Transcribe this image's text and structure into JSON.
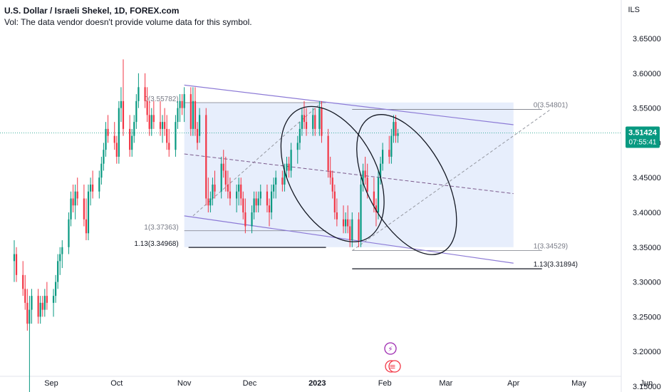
{
  "header": {
    "title": "U.S. Dollar / Israeli Shekel, 1D, FOREX.com",
    "volume_note": "Vol: The data vendor doesn't provide volume data for this symbol."
  },
  "price_axis": {
    "currency": "ILS",
    "current_price": "3.51424",
    "countdown": "07:55:41"
  },
  "chart_data": {
    "type": "candlestick",
    "title": "U.S. Dollar / Israeli Shekel, 1D, FOREX.com",
    "ylim": [
      3.125,
      3.675
    ],
    "y_ticks": [
      "3.65000",
      "3.60000",
      "3.55000",
      "3.50000",
      "3.45000",
      "3.40000",
      "3.35000",
      "3.30000",
      "3.25000",
      "3.20000",
      "3.15000"
    ],
    "x_ticks": [
      {
        "label": "Sep",
        "day": 0
      },
      {
        "label": "Oct",
        "day": 30
      },
      {
        "label": "Nov",
        "day": 61
      },
      {
        "label": "Dec",
        "day": 91
      },
      {
        "label": "2023",
        "day": 122
      },
      {
        "label": "Feb",
        "day": 153
      },
      {
        "label": "Mar",
        "day": 181
      },
      {
        "label": "Apr",
        "day": 212
      },
      {
        "label": "May",
        "day": 242
      },
      {
        "label": "Jun",
        "day": 273
      }
    ],
    "candles": [
      {
        "d": -17,
        "o": 3.33,
        "h": 3.36,
        "l": 3.3,
        "c": 3.34
      },
      {
        "d": -16,
        "o": 3.34,
        "h": 3.35,
        "l": 3.3,
        "c": 3.31
      },
      {
        "d": -13,
        "o": 3.31,
        "h": 3.33,
        "l": 3.28,
        "c": 3.29
      },
      {
        "d": -12,
        "o": 3.29,
        "h": 3.31,
        "l": 3.26,
        "c": 3.27
      },
      {
        "d": -11,
        "o": 3.27,
        "h": 3.29,
        "l": 3.23,
        "c": 3.24
      },
      {
        "d": -10,
        "o": 3.24,
        "h": 3.28,
        "l": 3.14,
        "c": 3.26
      },
      {
        "d": -9,
        "o": 3.26,
        "h": 3.29,
        "l": 3.24,
        "c": 3.28
      },
      {
        "d": -6,
        "o": 3.28,
        "h": 3.29,
        "l": 3.24,
        "c": 3.25
      },
      {
        "d": -5,
        "o": 3.25,
        "h": 3.28,
        "l": 3.24,
        "c": 3.27
      },
      {
        "d": -4,
        "o": 3.27,
        "h": 3.28,
        "l": 3.25,
        "c": 3.26
      },
      {
        "d": -3,
        "o": 3.26,
        "h": 3.29,
        "l": 3.25,
        "c": 3.28
      },
      {
        "d": -2,
        "o": 3.28,
        "h": 3.3,
        "l": 3.26,
        "c": 3.27
      },
      {
        "d": 1,
        "o": 3.27,
        "h": 3.29,
        "l": 3.25,
        "c": 3.28
      },
      {
        "d": 2,
        "o": 3.28,
        "h": 3.31,
        "l": 3.27,
        "c": 3.3
      },
      {
        "d": 3,
        "o": 3.3,
        "h": 3.34,
        "l": 3.29,
        "c": 3.33
      },
      {
        "d": 4,
        "o": 3.33,
        "h": 3.35,
        "l": 3.31,
        "c": 3.34
      },
      {
        "d": 5,
        "o": 3.34,
        "h": 3.36,
        "l": 3.32,
        "c": 3.35
      },
      {
        "d": 8,
        "o": 3.35,
        "h": 3.4,
        "l": 3.34,
        "c": 3.39
      },
      {
        "d": 9,
        "o": 3.39,
        "h": 3.43,
        "l": 3.38,
        "c": 3.42
      },
      {
        "d": 10,
        "o": 3.42,
        "h": 3.44,
        "l": 3.4,
        "c": 3.41
      },
      {
        "d": 11,
        "o": 3.41,
        "h": 3.44,
        "l": 3.39,
        "c": 3.43
      },
      {
        "d": 12,
        "o": 3.43,
        "h": 3.45,
        "l": 3.41,
        "c": 3.42
      },
      {
        "d": 15,
        "o": 3.42,
        "h": 3.44,
        "l": 3.38,
        "c": 3.39
      },
      {
        "d": 16,
        "o": 3.39,
        "h": 3.42,
        "l": 3.36,
        "c": 3.37
      },
      {
        "d": 17,
        "o": 3.37,
        "h": 3.44,
        "l": 3.36,
        "c": 3.43
      },
      {
        "d": 18,
        "o": 3.43,
        "h": 3.45,
        "l": 3.41,
        "c": 3.44
      },
      {
        "d": 19,
        "o": 3.44,
        "h": 3.46,
        "l": 3.42,
        "c": 3.43
      },
      {
        "d": 22,
        "o": 3.43,
        "h": 3.46,
        "l": 3.42,
        "c": 3.45
      },
      {
        "d": 23,
        "o": 3.45,
        "h": 3.48,
        "l": 3.44,
        "c": 3.47
      },
      {
        "d": 24,
        "o": 3.47,
        "h": 3.5,
        "l": 3.46,
        "c": 3.49
      },
      {
        "d": 25,
        "o": 3.49,
        "h": 3.53,
        "l": 3.48,
        "c": 3.52
      },
      {
        "d": 26,
        "o": 3.52,
        "h": 3.54,
        "l": 3.5,
        "c": 3.51
      },
      {
        "d": 29,
        "o": 3.51,
        "h": 3.53,
        "l": 3.49,
        "c": 3.5
      },
      {
        "d": 30,
        "o": 3.5,
        "h": 3.51,
        "l": 3.47,
        "c": 3.48
      },
      {
        "d": 31,
        "o": 3.48,
        "h": 3.56,
        "l": 3.47,
        "c": 3.55
      },
      {
        "d": 32,
        "o": 3.55,
        "h": 3.58,
        "l": 3.53,
        "c": 3.56
      },
      {
        "d": 33,
        "o": 3.56,
        "h": 3.62,
        "l": 3.51,
        "c": 3.52
      },
      {
        "d": 36,
        "o": 3.52,
        "h": 3.54,
        "l": 3.48,
        "c": 3.49
      },
      {
        "d": 37,
        "o": 3.49,
        "h": 3.52,
        "l": 3.48,
        "c": 3.51
      },
      {
        "d": 38,
        "o": 3.51,
        "h": 3.54,
        "l": 3.5,
        "c": 3.53
      },
      {
        "d": 39,
        "o": 3.53,
        "h": 3.57,
        "l": 3.52,
        "c": 3.56
      },
      {
        "d": 40,
        "o": 3.56,
        "h": 3.6,
        "l": 3.55,
        "c": 3.58
      },
      {
        "d": 43,
        "o": 3.58,
        "h": 3.6,
        "l": 3.55,
        "c": 3.56
      },
      {
        "d": 44,
        "o": 3.56,
        "h": 3.58,
        "l": 3.53,
        "c": 3.54
      },
      {
        "d": 45,
        "o": 3.54,
        "h": 3.56,
        "l": 3.51,
        "c": 3.52
      },
      {
        "d": 46,
        "o": 3.52,
        "h": 3.55,
        "l": 3.51,
        "c": 3.54
      },
      {
        "d": 47,
        "o": 3.54,
        "h": 3.56,
        "l": 3.52,
        "c": 3.53
      },
      {
        "d": 50,
        "o": 3.53,
        "h": 3.56,
        "l": 3.51,
        "c": 3.52
      },
      {
        "d": 51,
        "o": 3.52,
        "h": 3.54,
        "l": 3.5,
        "c": 3.53
      },
      {
        "d": 52,
        "o": 3.53,
        "h": 3.55,
        "l": 3.51,
        "c": 3.52
      },
      {
        "d": 53,
        "o": 3.52,
        "h": 3.54,
        "l": 3.49,
        "c": 3.5
      },
      {
        "d": 54,
        "o": 3.5,
        "h": 3.52,
        "l": 3.48,
        "c": 3.49
      },
      {
        "d": 57,
        "o": 3.49,
        "h": 3.54,
        "l": 3.48,
        "c": 3.53
      },
      {
        "d": 58,
        "o": 3.53,
        "h": 3.56,
        "l": 3.52,
        "c": 3.55
      },
      {
        "d": 59,
        "o": 3.55,
        "h": 3.57,
        "l": 3.53,
        "c": 3.56
      },
      {
        "d": 60,
        "o": 3.56,
        "h": 3.57,
        "l": 3.54,
        "c": 3.55
      },
      {
        "d": 61,
        "o": 3.55,
        "h": 3.58,
        "l": 3.53,
        "c": 3.57
      },
      {
        "d": 64,
        "o": 3.57,
        "h": 3.58,
        "l": 3.51,
        "c": 3.52
      },
      {
        "d": 65,
        "o": 3.52,
        "h": 3.58,
        "l": 3.51,
        "c": 3.56
      },
      {
        "d": 66,
        "o": 3.56,
        "h": 3.58,
        "l": 3.51,
        "c": 3.52
      },
      {
        "d": 67,
        "o": 3.52,
        "h": 3.53,
        "l": 3.49,
        "c": 3.5
      },
      {
        "d": 68,
        "o": 3.51,
        "h": 3.55,
        "l": 3.5,
        "c": 3.54
      },
      {
        "d": 71,
        "o": 3.54,
        "h": 3.55,
        "l": 3.41,
        "c": 3.42
      },
      {
        "d": 72,
        "o": 3.42,
        "h": 3.45,
        "l": 3.4,
        "c": 3.41
      },
      {
        "d": 73,
        "o": 3.41,
        "h": 3.43,
        "l": 3.4,
        "c": 3.42
      },
      {
        "d": 74,
        "o": 3.42,
        "h": 3.45,
        "l": 3.41,
        "c": 3.44
      },
      {
        "d": 75,
        "o": 3.44,
        "h": 3.46,
        "l": 3.42,
        "c": 3.43
      },
      {
        "d": 78,
        "o": 3.43,
        "h": 3.48,
        "l": 3.42,
        "c": 3.47
      },
      {
        "d": 79,
        "o": 3.47,
        "h": 3.49,
        "l": 3.45,
        "c": 3.46
      },
      {
        "d": 80,
        "o": 3.46,
        "h": 3.48,
        "l": 3.43,
        "c": 3.44
      },
      {
        "d": 81,
        "o": 3.44,
        "h": 3.46,
        "l": 3.42,
        "c": 3.43
      },
      {
        "d": 82,
        "o": 3.43,
        "h": 3.45,
        "l": 3.41,
        "c": 3.42
      },
      {
        "d": 85,
        "o": 3.42,
        "h": 3.44,
        "l": 3.4,
        "c": 3.43
      },
      {
        "d": 86,
        "o": 3.43,
        "h": 3.45,
        "l": 3.41,
        "c": 3.44
      },
      {
        "d": 87,
        "o": 3.44,
        "h": 3.45,
        "l": 3.41,
        "c": 3.42
      },
      {
        "d": 88,
        "o": 3.42,
        "h": 3.43,
        "l": 3.39,
        "c": 3.4
      },
      {
        "d": 89,
        "o": 3.4,
        "h": 3.42,
        "l": 3.37,
        "c": 3.38
      },
      {
        "d": 92,
        "o": 3.38,
        "h": 3.41,
        "l": 3.37,
        "c": 3.4
      },
      {
        "d": 93,
        "o": 3.4,
        "h": 3.43,
        "l": 3.39,
        "c": 3.42
      },
      {
        "d": 94,
        "o": 3.42,
        "h": 3.43,
        "l": 3.4,
        "c": 3.41
      },
      {
        "d": 95,
        "o": 3.41,
        "h": 3.43,
        "l": 3.4,
        "c": 3.42
      },
      {
        "d": 96,
        "o": 3.42,
        "h": 3.44,
        "l": 3.41,
        "c": 3.43
      },
      {
        "d": 99,
        "o": 3.43,
        "h": 3.44,
        "l": 3.4,
        "c": 3.41
      },
      {
        "d": 100,
        "o": 3.41,
        "h": 3.42,
        "l": 3.38,
        "c": 3.4
      },
      {
        "d": 101,
        "o": 3.4,
        "h": 3.44,
        "l": 3.39,
        "c": 3.43
      },
      {
        "d": 102,
        "o": 3.43,
        "h": 3.45,
        "l": 3.42,
        "c": 3.44
      },
      {
        "d": 103,
        "o": 3.44,
        "h": 3.46,
        "l": 3.42,
        "c": 3.45
      },
      {
        "d": 106,
        "o": 3.45,
        "h": 3.46,
        "l": 3.43,
        "c": 3.44
      },
      {
        "d": 107,
        "o": 3.44,
        "h": 3.47,
        "l": 3.43,
        "c": 3.46
      },
      {
        "d": 108,
        "o": 3.46,
        "h": 3.48,
        "l": 3.45,
        "c": 3.47
      },
      {
        "d": 109,
        "o": 3.47,
        "h": 3.48,
        "l": 3.45,
        "c": 3.46
      },
      {
        "d": 110,
        "o": 3.46,
        "h": 3.5,
        "l": 3.45,
        "c": 3.49
      },
      {
        "d": 113,
        "o": 3.49,
        "h": 3.51,
        "l": 3.47,
        "c": 3.5
      },
      {
        "d": 114,
        "o": 3.5,
        "h": 3.53,
        "l": 3.49,
        "c": 3.52
      },
      {
        "d": 115,
        "o": 3.52,
        "h": 3.55,
        "l": 3.51,
        "c": 3.54
      },
      {
        "d": 116,
        "o": 3.54,
        "h": 3.56,
        "l": 3.52,
        "c": 3.53
      },
      {
        "d": 117,
        "o": 3.53,
        "h": 3.55,
        "l": 3.51,
        "c": 3.52
      },
      {
        "d": 120,
        "o": 3.52,
        "h": 3.55,
        "l": 3.51,
        "c": 3.54
      },
      {
        "d": 121,
        "o": 3.54,
        "h": 3.55,
        "l": 3.51,
        "c": 3.52
      },
      {
        "d": 123,
        "o": 3.52,
        "h": 3.56,
        "l": 3.51,
        "c": 3.55
      },
      {
        "d": 124,
        "o": 3.55,
        "h": 3.56,
        "l": 3.5,
        "c": 3.51
      },
      {
        "d": 127,
        "o": 3.51,
        "h": 3.52,
        "l": 3.45,
        "c": 3.46
      },
      {
        "d": 128,
        "o": 3.46,
        "h": 3.48,
        "l": 3.44,
        "c": 3.45
      },
      {
        "d": 129,
        "o": 3.45,
        "h": 3.46,
        "l": 3.42,
        "c": 3.43
      },
      {
        "d": 130,
        "o": 3.43,
        "h": 3.44,
        "l": 3.39,
        "c": 3.4
      },
      {
        "d": 131,
        "o": 3.4,
        "h": 3.42,
        "l": 3.38,
        "c": 3.39
      },
      {
        "d": 134,
        "o": 3.39,
        "h": 3.41,
        "l": 3.37,
        "c": 3.38
      },
      {
        "d": 135,
        "o": 3.38,
        "h": 3.4,
        "l": 3.37,
        "c": 3.39
      },
      {
        "d": 136,
        "o": 3.39,
        "h": 3.41,
        "l": 3.37,
        "c": 3.38
      },
      {
        "d": 137,
        "o": 3.38,
        "h": 3.39,
        "l": 3.35,
        "c": 3.36
      },
      {
        "d": 138,
        "o": 3.36,
        "h": 3.4,
        "l": 3.35,
        "c": 3.39
      },
      {
        "d": 141,
        "o": 3.39,
        "h": 3.4,
        "l": 3.35,
        "c": 3.36
      },
      {
        "d": 142,
        "o": 3.36,
        "h": 3.45,
        "l": 3.35,
        "c": 3.44
      },
      {
        "d": 143,
        "o": 3.44,
        "h": 3.47,
        "l": 3.43,
        "c": 3.46
      },
      {
        "d": 144,
        "o": 3.46,
        "h": 3.48,
        "l": 3.44,
        "c": 3.45
      },
      {
        "d": 145,
        "o": 3.45,
        "h": 3.47,
        "l": 3.42,
        "c": 3.43
      },
      {
        "d": 148,
        "o": 3.43,
        "h": 3.45,
        "l": 3.4,
        "c": 3.41
      },
      {
        "d": 149,
        "o": 3.41,
        "h": 3.42,
        "l": 3.38,
        "c": 3.4
      },
      {
        "d": 150,
        "o": 3.4,
        "h": 3.46,
        "l": 3.39,
        "c": 3.45
      },
      {
        "d": 151,
        "o": 3.45,
        "h": 3.48,
        "l": 3.44,
        "c": 3.47
      },
      {
        "d": 152,
        "o": 3.47,
        "h": 3.5,
        "l": 3.46,
        "c": 3.49
      },
      {
        "d": 155,
        "o": 3.49,
        "h": 3.51,
        "l": 3.47,
        "c": 3.48
      },
      {
        "d": 156,
        "o": 3.48,
        "h": 3.52,
        "l": 3.47,
        "c": 3.51
      },
      {
        "d": 157,
        "o": 3.51,
        "h": 3.54,
        "l": 3.5,
        "c": 3.53
      },
      {
        "d": 158,
        "o": 3.53,
        "h": 3.54,
        "l": 3.5,
        "c": 3.51
      },
      {
        "d": 159,
        "o": 3.51,
        "h": 3.52,
        "l": 3.5,
        "c": 3.514
      }
    ],
    "channel": {
      "upper": [
        {
          "d": 61,
          "p": 3.583
        },
        {
          "d": 212,
          "p": 3.526
        }
      ],
      "lower": [
        {
          "d": 61,
          "p": 3.395
        },
        {
          "d": 212,
          "p": 3.327
        }
      ],
      "mid": [
        {
          "d": 61,
          "p": 3.484
        },
        {
          "d": 212,
          "p": 3.427
        }
      ],
      "shade": {
        "d0": 61,
        "d1": 212,
        "top": 3.558,
        "bottom": 3.35
      }
    },
    "fib_left": {
      "d0": 61,
      "d1": 126,
      "labels": [
        {
          "text": "0(3.55782)",
          "p": 3.5578
        },
        {
          "text": "1(3.37363)",
          "p": 3.3736
        },
        {
          "text": "1.13(3.34968)",
          "p": 3.3497
        }
      ]
    },
    "fib_right": {
      "d0": 138,
      "d1": 212,
      "labels": [
        {
          "text": "0(3.54801)",
          "p": 3.548
        },
        {
          "text": "1(3.34529)",
          "p": 3.3453
        },
        {
          "text": "1.13(3.31894)",
          "p": 3.3189
        }
      ]
    },
    "trend_lines": [
      {
        "d0": 65,
        "p0": 3.395,
        "d1": 124,
        "p1": 3.558
      },
      {
        "d0": 138,
        "p0": 3.345,
        "d1": 229,
        "p1": 3.548
      }
    ],
    "ellipses": [
      {
        "cd": 129,
        "cp": 3.455,
        "rd": 20,
        "rp": 0.105,
        "tilt": -28
      },
      {
        "cd": 163,
        "cp": 3.44,
        "rd": 18,
        "rp": 0.11,
        "tilt": -28
      }
    ],
    "colors": {
      "up": "#089981",
      "down": "#f23645",
      "channel": "#8c7ad6",
      "shade": "#dfe8fb",
      "price_line": "#089981",
      "fib": "#131722"
    }
  },
  "markers": [
    {
      "name": "lightning-icon",
      "glyph": "⚡",
      "color": "#9c27b0"
    },
    {
      "name": "us-flag-icon",
      "glyph": "≡",
      "color": "#f23645"
    }
  ]
}
